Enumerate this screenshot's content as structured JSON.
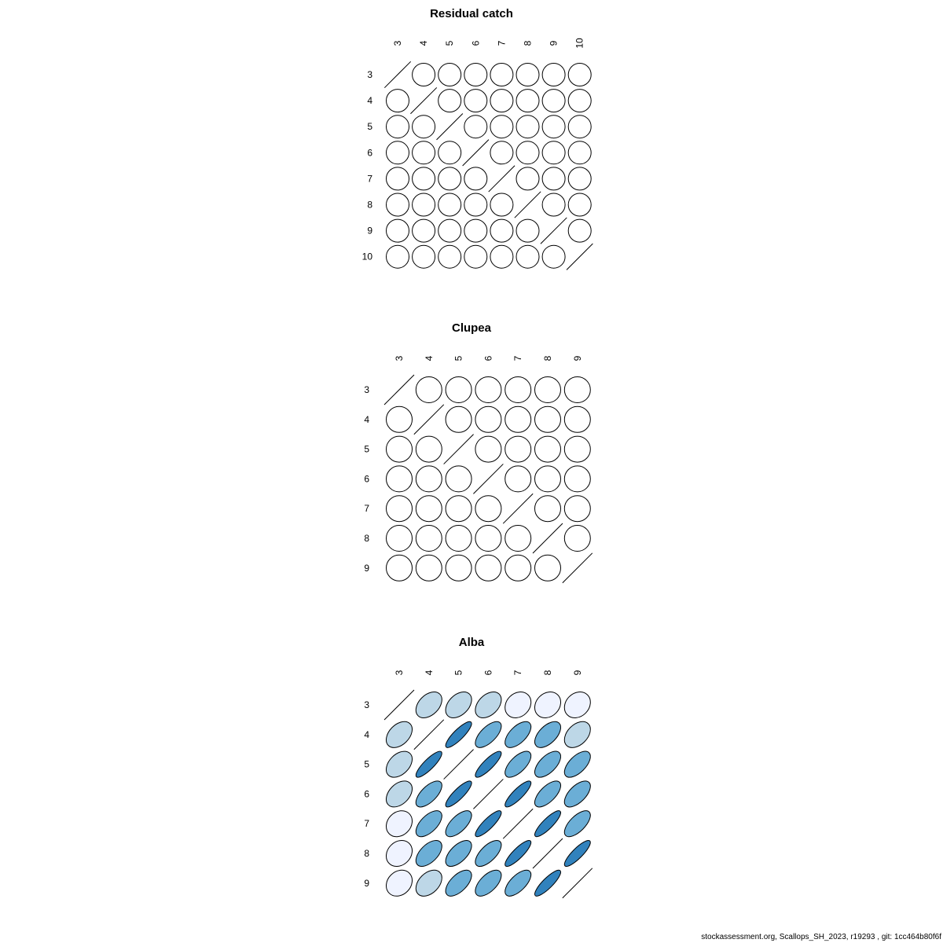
{
  "chart_data": [
    {
      "type": "correlation-ellipse-matrix",
      "title": "Residual catch",
      "labels": [
        "3",
        "4",
        "5",
        "6",
        "7",
        "8",
        "9",
        "10"
      ],
      "matrix": [
        [
          1,
          0,
          0,
          0,
          0,
          0,
          0,
          0
        ],
        [
          0,
          1,
          0,
          0,
          0,
          0,
          0,
          0
        ],
        [
          0,
          0,
          1,
          0,
          0,
          0,
          0,
          0
        ],
        [
          0,
          0,
          0,
          1,
          0,
          0,
          0,
          0
        ],
        [
          0,
          0,
          0,
          0,
          1,
          0,
          0,
          0
        ],
        [
          0,
          0,
          0,
          0,
          0,
          1,
          0,
          0
        ],
        [
          0,
          0,
          0,
          0,
          0,
          0,
          1,
          0
        ],
        [
          0,
          0,
          0,
          0,
          0,
          0,
          0,
          1
        ]
      ]
    },
    {
      "type": "correlation-ellipse-matrix",
      "title": "Clupea",
      "labels": [
        "3",
        "4",
        "5",
        "6",
        "7",
        "8",
        "9"
      ],
      "matrix": [
        [
          1,
          0,
          0,
          0,
          0,
          0,
          0
        ],
        [
          0,
          1,
          0,
          0,
          0,
          0,
          0
        ],
        [
          0,
          0,
          1,
          0,
          0,
          0,
          0
        ],
        [
          0,
          0,
          0,
          1,
          0,
          0,
          0
        ],
        [
          0,
          0,
          0,
          0,
          1,
          0,
          0
        ],
        [
          0,
          0,
          0,
          0,
          0,
          1,
          0
        ],
        [
          0,
          0,
          0,
          0,
          0,
          0,
          1
        ]
      ]
    },
    {
      "type": "correlation-ellipse-matrix",
      "title": "Alba",
      "labels": [
        "3",
        "4",
        "5",
        "6",
        "7",
        "8",
        "9"
      ],
      "matrix": [
        [
          1,
          0.4,
          0.4,
          0.4,
          0.2,
          0.2,
          0.2
        ],
        [
          0.4,
          1,
          0.85,
          0.65,
          0.6,
          0.55,
          0.4
        ],
        [
          0.4,
          0.85,
          1,
          0.85,
          0.65,
          0.6,
          0.6
        ],
        [
          0.4,
          0.65,
          0.85,
          1,
          0.85,
          0.65,
          0.6
        ],
        [
          0.2,
          0.6,
          0.65,
          0.85,
          1,
          0.85,
          0.65
        ],
        [
          0.2,
          0.55,
          0.6,
          0.65,
          0.85,
          1,
          0.85
        ],
        [
          0.2,
          0.4,
          0.6,
          0.6,
          0.65,
          0.85,
          1
        ]
      ]
    }
  ],
  "color_scale": [
    "#ffffff",
    "#eff3ff",
    "#bdd7e7",
    "#6baed6",
    "#3182bd"
  ],
  "footer": "stockassessment.org, Scallops_SH_2023, r19293 , git: 1cc464b80f6f"
}
